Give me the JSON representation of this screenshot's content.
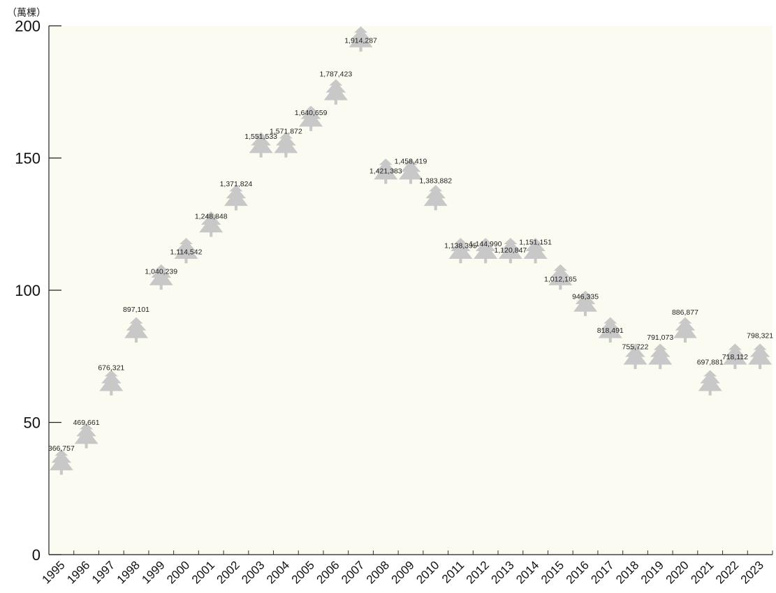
{
  "chart_data": {
    "type": "bar",
    "unit_label": "（萬棵）",
    "categories": [
      "1995",
      "1996",
      "1997",
      "1998",
      "1999",
      "2000",
      "2001",
      "2002",
      "2003",
      "2004",
      "2005",
      "2006",
      "2007",
      "2008",
      "2009",
      "2010",
      "2011",
      "2012",
      "2013",
      "2014",
      "2015",
      "2016",
      "2017",
      "2018",
      "2019",
      "2020",
      "2021",
      "2022",
      "2023"
    ],
    "values": [
      366757,
      469661,
      676321,
      897101,
      1040239,
      1114542,
      1248848,
      1371824,
      1551533,
      1571872,
      1640659,
      1787423,
      1914287,
      1421383,
      1458419,
      1383882,
      1138395,
      1144990,
      1120847,
      1151151,
      1012165,
      946335,
      818491,
      755722,
      791073,
      886877,
      697881,
      718112,
      798321
    ],
    "data_labels": [
      "366,757",
      "469,661",
      "676,321",
      "897,101",
      "1,040,239",
      "1,114,542",
      "1,248,848",
      "1,371,824",
      "1,551,533",
      "1,571,872",
      "1,640,659",
      "1,787,423",
      "1,914,287",
      "1,421,383",
      "1,458,419",
      "1,383,882",
      "1,138,395",
      "1,144,990",
      "1,120,847",
      "1,151,151",
      "1,012,165",
      "946,335",
      "818,491",
      "755,722",
      "791,073",
      "886,877",
      "697,881",
      "718,112",
      "798,321"
    ],
    "yticks": [
      "0",
      "50",
      "100",
      "150",
      "200"
    ],
    "ylim": [
      0,
      200
    ],
    "tree_unit": 10,
    "grid": false,
    "plot_background": "#fbfbf1",
    "colors": {
      "tree": "#16a04c",
      "tree_partial": "#c8c8c8"
    }
  }
}
